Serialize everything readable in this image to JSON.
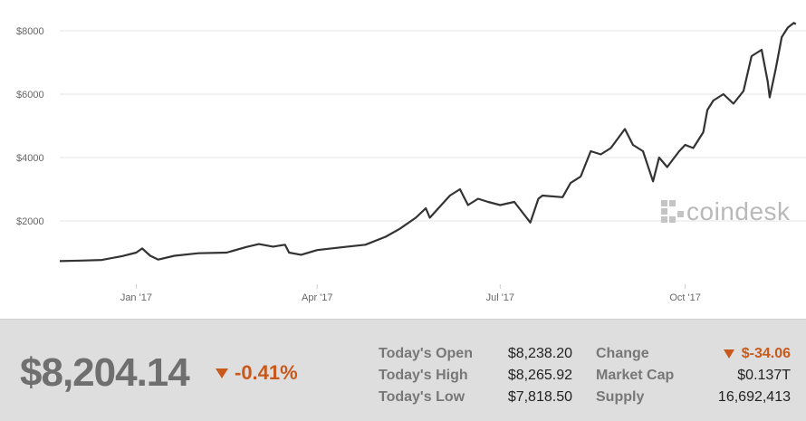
{
  "chart_data": {
    "type": "line",
    "ylim": [
      0,
      8400
    ],
    "y_ticks": [
      2000,
      4000,
      6000,
      8000
    ],
    "y_tick_labels": [
      "$2000",
      "$4000",
      "$6000",
      "$8000"
    ],
    "x_ticks": [
      "2017-01-01",
      "2017-04-01",
      "2017-07-01",
      "2017-10-01"
    ],
    "x_tick_labels": [
      "Jan '17",
      "Apr '17",
      "Jul '17",
      "Oct '17"
    ],
    "xlim": [
      "2016-11-24",
      "2017-11-26"
    ],
    "grid": "horizontal",
    "color": "#333333",
    "series": [
      {
        "points": [
          [
            "2016-11-24",
            730
          ],
          [
            "2016-12-05",
            750
          ],
          [
            "2016-12-15",
            770
          ],
          [
            "2016-12-25",
            890
          ],
          [
            "2017-01-01",
            1000
          ],
          [
            "2017-01-04",
            1130
          ],
          [
            "2017-01-08",
            900
          ],
          [
            "2017-01-12",
            780
          ],
          [
            "2017-01-20",
            900
          ],
          [
            "2017-02-01",
            980
          ],
          [
            "2017-02-15",
            1000
          ],
          [
            "2017-02-25",
            1180
          ],
          [
            "2017-03-03",
            1270
          ],
          [
            "2017-03-10",
            1190
          ],
          [
            "2017-03-16",
            1250
          ],
          [
            "2017-03-18",
            1000
          ],
          [
            "2017-03-24",
            930
          ],
          [
            "2017-04-01",
            1080
          ],
          [
            "2017-04-15",
            1180
          ],
          [
            "2017-04-25",
            1250
          ],
          [
            "2017-05-05",
            1500
          ],
          [
            "2017-05-12",
            1750
          ],
          [
            "2017-05-20",
            2100
          ],
          [
            "2017-05-25",
            2400
          ],
          [
            "2017-05-27",
            2100
          ],
          [
            "2017-06-06",
            2800
          ],
          [
            "2017-06-11",
            3000
          ],
          [
            "2017-06-15",
            2500
          ],
          [
            "2017-06-20",
            2700
          ],
          [
            "2017-06-25",
            2600
          ],
          [
            "2017-07-01",
            2500
          ],
          [
            "2017-07-08",
            2600
          ],
          [
            "2017-07-16",
            1950
          ],
          [
            "2017-07-20",
            2700
          ],
          [
            "2017-07-22",
            2800
          ],
          [
            "2017-08-01",
            2750
          ],
          [
            "2017-08-05",
            3200
          ],
          [
            "2017-08-10",
            3400
          ],
          [
            "2017-08-15",
            4200
          ],
          [
            "2017-08-20",
            4100
          ],
          [
            "2017-08-25",
            4300
          ],
          [
            "2017-09-01",
            4900
          ],
          [
            "2017-09-05",
            4400
          ],
          [
            "2017-09-10",
            4200
          ],
          [
            "2017-09-15",
            3250
          ],
          [
            "2017-09-18",
            4000
          ],
          [
            "2017-09-22",
            3700
          ],
          [
            "2017-09-28",
            4200
          ],
          [
            "2017-10-01",
            4400
          ],
          [
            "2017-10-05",
            4300
          ],
          [
            "2017-10-10",
            4800
          ],
          [
            "2017-10-12",
            5500
          ],
          [
            "2017-10-15",
            5800
          ],
          [
            "2017-10-20",
            6000
          ],
          [
            "2017-10-25",
            5700
          ],
          [
            "2017-10-30",
            6100
          ],
          [
            "2017-11-03",
            7200
          ],
          [
            "2017-11-08",
            7400
          ],
          [
            "2017-11-11",
            6400
          ],
          [
            "2017-11-12",
            5900
          ],
          [
            "2017-11-15",
            6800
          ],
          [
            "2017-11-18",
            7800
          ],
          [
            "2017-11-21",
            8100
          ],
          [
            "2017-11-24",
            8250
          ],
          [
            "2017-11-25",
            8210
          ]
        ]
      }
    ]
  },
  "watermark": {
    "text": "coindesk",
    "icon": "coindesk-logo-icon",
    "color": "#b9b9b9"
  },
  "summary": {
    "price": "$8,204.14",
    "percent_change": "-0.41%",
    "direction_icon": "down-triangle-icon",
    "accent_color": "#c8591d"
  },
  "stats": {
    "open_label": "Today's Open",
    "open_value": "$8,238.20",
    "high_label": "Today's High",
    "high_value": "$8,265.92",
    "low_label": "Today's Low",
    "low_value": "$7,818.50",
    "change_label": "Change",
    "change_value": "$-34.06",
    "cap_label": "Market Cap",
    "cap_value": "$0.137T",
    "supply_label": "Supply",
    "supply_value": "16,692,413"
  }
}
